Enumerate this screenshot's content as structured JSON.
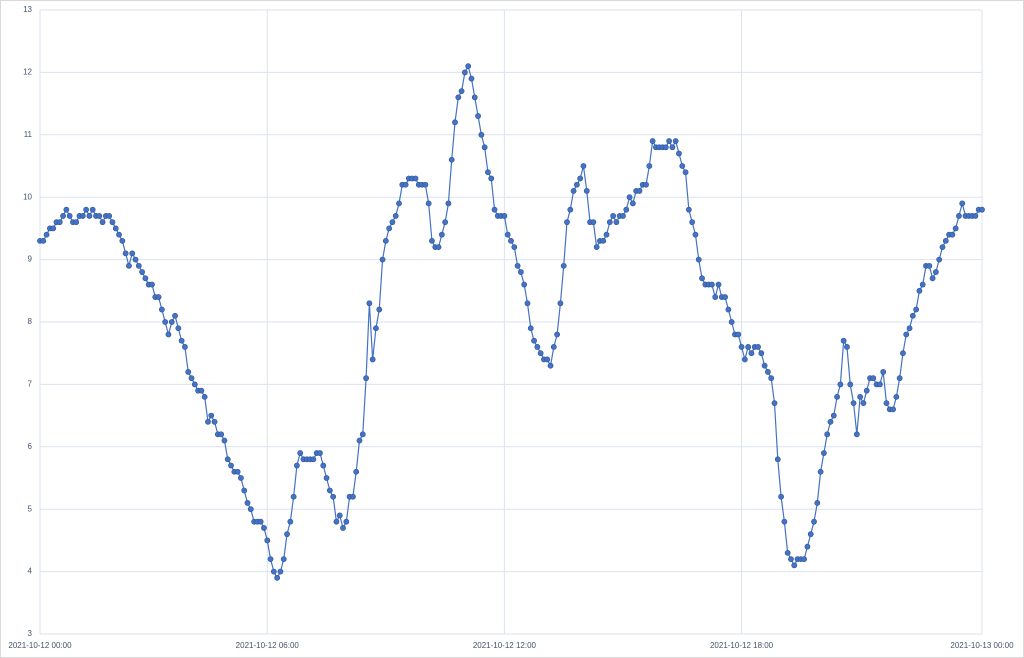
{
  "chart_data": {
    "type": "line",
    "color": "#4472c4",
    "grid": true,
    "categories": [
      "2021-10-12 00:00",
      null,
      null,
      null,
      null,
      null,
      null,
      null,
      null,
      null,
      null,
      null,
      null,
      null,
      null,
      null,
      null,
      null,
      null,
      null,
      null,
      null,
      null,
      null,
      null,
      null,
      null,
      null,
      null,
      null,
      null,
      null,
      null,
      null,
      null,
      null,
      null,
      null,
      null,
      null,
      null,
      null,
      null,
      null,
      null,
      null,
      null,
      null,
      null,
      null,
      null,
      null,
      null,
      null,
      null,
      null,
      null,
      null,
      null,
      null,
      null,
      null,
      null,
      null,
      null,
      null,
      null,
      null,
      null,
      "2021-10-12 06:00",
      null,
      null,
      null,
      null,
      null,
      null,
      null,
      null,
      null,
      null,
      null,
      null,
      null,
      null,
      null,
      null,
      null,
      null,
      null,
      null,
      null,
      null,
      null,
      null,
      null,
      null,
      null,
      null,
      null,
      null,
      null,
      null,
      null,
      null,
      null,
      null,
      null,
      null,
      null,
      null,
      null,
      null,
      null,
      null,
      null,
      null,
      null,
      null,
      null,
      null,
      null,
      null,
      null,
      null,
      null,
      null,
      null,
      null,
      null,
      null,
      null,
      null,
      null,
      null,
      null,
      null,
      null,
      null,
      null,
      null,
      null,
      "2021-10-12 12:00",
      null,
      null,
      null,
      null,
      null,
      null,
      null,
      null,
      null,
      null,
      null,
      null,
      null,
      null,
      null,
      null,
      null,
      null,
      null,
      null,
      null,
      null,
      null,
      null,
      null,
      null,
      null,
      null,
      null,
      null,
      null,
      null,
      null,
      null,
      null,
      null,
      null,
      null,
      null,
      null,
      null,
      null,
      null,
      null,
      null,
      null,
      null,
      null,
      null,
      null,
      null,
      null,
      null,
      null,
      null,
      null,
      null,
      null,
      null,
      null,
      null,
      null,
      null,
      null,
      null,
      null,
      null,
      null,
      null,
      null,
      null,
      "2021-10-12 18:00",
      null,
      null,
      null,
      null,
      null,
      null,
      null,
      null,
      null,
      null,
      null,
      null,
      null,
      null,
      null,
      null,
      null,
      null,
      null,
      null,
      null,
      null,
      null,
      null,
      null,
      null,
      null,
      null,
      null,
      null,
      null,
      null,
      null,
      null,
      null,
      null,
      null,
      null,
      null,
      null,
      null,
      null,
      null,
      null,
      null,
      null,
      null,
      null,
      null,
      null,
      null,
      null,
      null,
      null,
      null,
      null,
      null,
      null,
      null,
      null,
      null,
      null,
      null,
      null,
      null,
      null,
      null,
      null,
      null,
      null,
      null,
      null,
      "2021-10-13 00:00"
    ],
    "values": [
      9.3,
      9.3,
      9.4,
      9.5,
      9.5,
      9.6,
      9.6,
      9.7,
      9.8,
      9.7,
      9.6,
      9.6,
      9.7,
      9.7,
      9.8,
      9.7,
      9.8,
      9.7,
      9.7,
      9.6,
      9.7,
      9.7,
      9.6,
      9.5,
      9.4,
      9.3,
      9.1,
      8.9,
      9.1,
      9.0,
      8.9,
      8.8,
      8.7,
      8.6,
      8.6,
      8.4,
      8.4,
      8.2,
      8.0,
      7.8,
      8.0,
      8.1,
      7.9,
      7.7,
      7.6,
      7.2,
      7.1,
      7.0,
      6.9,
      6.9,
      6.8,
      6.4,
      6.5,
      6.4,
      6.2,
      6.2,
      6.1,
      5.8,
      5.7,
      5.6,
      5.6,
      5.5,
      5.3,
      5.1,
      5.0,
      4.8,
      4.8,
      4.8,
      4.7,
      4.5,
      4.2,
      4.0,
      3.9,
      4.0,
      4.2,
      4.6,
      4.8,
      5.2,
      5.7,
      5.9,
      5.8,
      5.8,
      5.8,
      5.8,
      5.9,
      5.9,
      5.7,
      5.5,
      5.3,
      5.2,
      4.8,
      4.9,
      4.7,
      4.8,
      5.2,
      5.2,
      5.6,
      6.1,
      6.2,
      7.1,
      8.3,
      7.4,
      7.9,
      8.2,
      9.0,
      9.3,
      9.5,
      9.6,
      9.7,
      9.9,
      10.2,
      10.2,
      10.3,
      10.3,
      10.3,
      10.2,
      10.2,
      10.2,
      9.9,
      9.3,
      9.2,
      9.2,
      9.4,
      9.6,
      9.9,
      10.6,
      11.2,
      11.6,
      11.7,
      12.0,
      12.1,
      11.9,
      11.6,
      11.3,
      11.0,
      10.8,
      10.4,
      10.3,
      9.8,
      9.7,
      9.7,
      9.7,
      9.4,
      9.3,
      9.2,
      8.9,
      8.8,
      8.6,
      8.3,
      7.9,
      7.7,
      7.6,
      7.5,
      7.4,
      7.4,
      7.3,
      7.6,
      7.8,
      8.3,
      8.9,
      9.6,
      9.8,
      10.1,
      10.2,
      10.3,
      10.5,
      10.1,
      9.6,
      9.6,
      9.2,
      9.3,
      9.3,
      9.4,
      9.6,
      9.7,
      9.6,
      9.7,
      9.7,
      9.8,
      10.0,
      9.9,
      10.1,
      10.1,
      10.2,
      10.2,
      10.5,
      10.9,
      10.8,
      10.8,
      10.8,
      10.8,
      10.9,
      10.8,
      10.9,
      10.7,
      10.5,
      10.4,
      9.8,
      9.6,
      9.4,
      9.0,
      8.7,
      8.6,
      8.6,
      8.6,
      8.4,
      8.6,
      8.4,
      8.4,
      8.2,
      8.0,
      7.8,
      7.8,
      7.6,
      7.4,
      7.6,
      7.5,
      7.6,
      7.6,
      7.5,
      7.3,
      7.2,
      7.1,
      6.7,
      5.8,
      5.2,
      4.8,
      4.3,
      4.2,
      4.1,
      4.2,
      4.2,
      4.2,
      4.4,
      4.6,
      4.8,
      5.1,
      5.6,
      5.9,
      6.2,
      6.4,
      6.5,
      6.8,
      7.0,
      7.7,
      7.6,
      7.0,
      6.7,
      6.2,
      6.8,
      6.7,
      6.9,
      7.1,
      7.1,
      7.0,
      7.0,
      7.2,
      6.7,
      6.6,
      6.6,
      6.8,
      7.1,
      7.5,
      7.8,
      7.9,
      8.1,
      8.2,
      8.5,
      8.6,
      8.9,
      8.9,
      8.7,
      8.8,
      9.0,
      9.2,
      9.3,
      9.4,
      9.4,
      9.5,
      9.7,
      9.9,
      9.7,
      9.7,
      9.7,
      9.7,
      9.8,
      9.8
    ],
    "ylim": [
      3,
      13
    ],
    "yticks": [
      3,
      4,
      5,
      6,
      7,
      8,
      9,
      10,
      11,
      12,
      13
    ]
  }
}
